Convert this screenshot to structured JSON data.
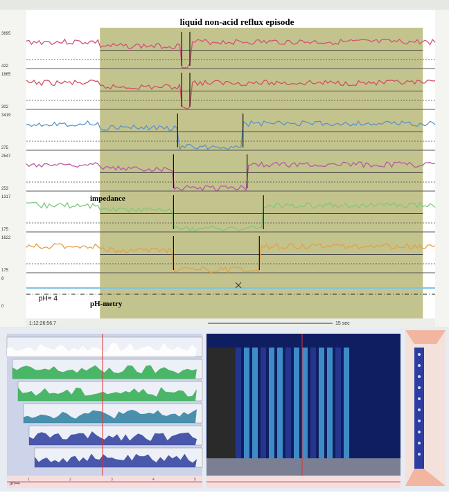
{
  "top_panel": {
    "title": "liquid non-acid reflux episode",
    "impedance_label": "impedance",
    "ph_label": "pH-metry",
    "ph_line_label": "pH= 4",
    "time_label": "1:12:26:56.7",
    "scale_label": "15 sec"
  },
  "colors": {
    "background": "#f4f5f1",
    "episode_shade": "#b9b87a",
    "channel_1": "#d2507a",
    "channel_2": "#d24f61",
    "channel_3": "#5b93c8",
    "channel_4": "#b85aa0",
    "channel_5": "#7fc77e",
    "channel_6": "#e3a045",
    "ph_trace": "#7fc3e6",
    "hrm_deep": "#2b3d9c",
    "hrm_bright": "#4fb2ea",
    "green_fill": "#2dab4f"
  },
  "chart_data": {
    "type": "line",
    "title": "liquid non-acid reflux episode",
    "xlabel": "",
    "ylabel": "",
    "x_start_label": "1:12:26:56.7",
    "scale_bar": "15 sec",
    "episode_x": [
      0.18,
      0.97
    ],
    "channels": [
      {
        "name": "",
        "ymax_label": "3695",
        "ymin_label": "422",
        "drop_x": [
          0.38,
          0.4
        ],
        "ylim": [
          422,
          3695
        ]
      },
      {
        "name": "",
        "ymax_label": "1865",
        "ymin_label": "302",
        "drop_x": [
          0.38,
          0.4
        ],
        "ylim": [
          302,
          1865
        ]
      },
      {
        "name": "",
        "ymax_label": "3419",
        "ymin_label": "275",
        "drop_x": [
          0.37,
          0.53
        ],
        "ylim": [
          275,
          3419
        ]
      },
      {
        "name": "",
        "ymax_label": "2547",
        "ymin_label": "253",
        "drop_x": [
          0.36,
          0.54
        ],
        "ylim": [
          253,
          2547
        ]
      },
      {
        "name": "",
        "ymax_label": "1317",
        "ymin_label": "175",
        "drop_x": [
          0.36,
          0.58
        ],
        "ylim": [
          175,
          1317
        ]
      },
      {
        "name": "",
        "ymax_label": "1622",
        "ymin_label": "175",
        "drop_x": [
          0.36,
          0.57
        ],
        "ylim": [
          175,
          1622
        ]
      }
    ],
    "ph": {
      "ymax_label": "8",
      "ymin_label": "0",
      "threshold": 4
    }
  },
  "bottom_panels": {
    "left_label": "pH=4",
    "ticks": [
      "1",
      "2",
      "3",
      "4",
      "5"
    ]
  }
}
